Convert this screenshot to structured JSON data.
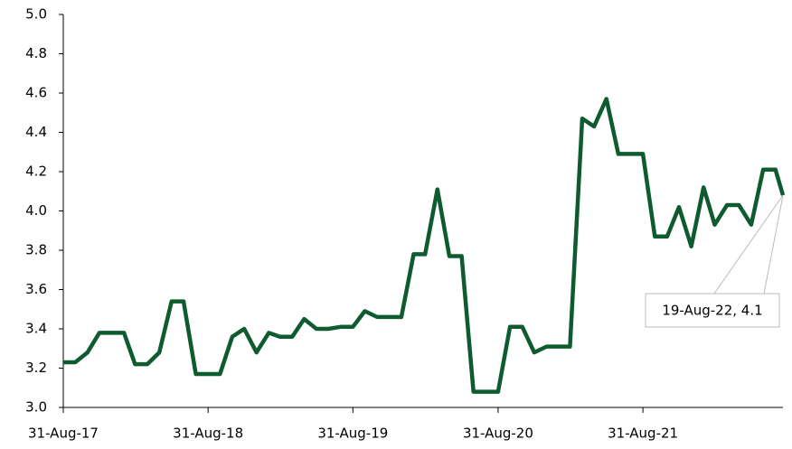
{
  "chart_data": {
    "type": "line",
    "x": [
      "2017-08-31",
      "2017-09-30",
      "2017-10-31",
      "2017-11-30",
      "2017-12-31",
      "2018-01-31",
      "2018-02-28",
      "2018-03-31",
      "2018-04-30",
      "2018-05-31",
      "2018-06-30",
      "2018-07-31",
      "2018-08-31",
      "2018-09-30",
      "2018-10-31",
      "2018-11-30",
      "2018-12-31",
      "2019-01-31",
      "2019-02-28",
      "2019-03-31",
      "2019-04-30",
      "2019-05-31",
      "2019-06-30",
      "2019-07-31",
      "2019-08-31",
      "2019-09-30",
      "2019-10-31",
      "2019-11-30",
      "2019-12-31",
      "2020-01-31",
      "2020-02-29",
      "2020-03-31",
      "2020-04-30",
      "2020-05-31",
      "2020-06-30",
      "2020-07-31",
      "2020-08-31",
      "2020-09-30",
      "2020-10-31",
      "2020-11-30",
      "2020-12-31",
      "2021-01-31",
      "2021-02-28",
      "2021-03-31",
      "2021-04-30",
      "2021-05-31",
      "2021-06-30",
      "2021-07-31",
      "2021-08-31",
      "2021-09-30",
      "2021-10-31",
      "2021-11-30",
      "2021-12-31",
      "2022-01-31",
      "2022-02-28",
      "2022-03-31",
      "2022-04-30",
      "2022-05-31",
      "2022-06-30",
      "2022-07-31",
      "2022-08-19"
    ],
    "series": [
      {
        "color": "#0d5b2e",
        "values": [
          3.23,
          3.23,
          3.28,
          3.38,
          3.38,
          3.38,
          3.22,
          3.22,
          3.28,
          3.54,
          3.54,
          3.17,
          3.17,
          3.17,
          3.36,
          3.4,
          3.28,
          3.38,
          3.36,
          3.36,
          3.45,
          3.4,
          3.4,
          3.41,
          3.41,
          3.49,
          3.46,
          3.46,
          3.46,
          3.78,
          3.78,
          4.11,
          3.77,
          3.77,
          3.08,
          3.08,
          3.08,
          3.41,
          3.41,
          3.28,
          3.31,
          3.31,
          3.31,
          4.47,
          4.43,
          4.57,
          4.29,
          4.29,
          4.29,
          3.87,
          3.87,
          4.02,
          3.82,
          4.12,
          3.93,
          4.03,
          4.03,
          3.93,
          4.21,
          4.21,
          4.08
        ]
      }
    ],
    "xlim": [
      "2017-08-31",
      "2022-08-19"
    ],
    "xticks": [
      {
        "value": "2017-08-31",
        "label": "31-Aug-17"
      },
      {
        "value": "2018-08-31",
        "label": "31-Aug-18"
      },
      {
        "value": "2019-08-31",
        "label": "31-Aug-19"
      },
      {
        "value": "2020-08-31",
        "label": "31-Aug-20"
      },
      {
        "value": "2021-08-31",
        "label": "31-Aug-21"
      }
    ],
    "ylim": [
      3.0,
      5.0
    ],
    "yticks": [
      {
        "value": 3.0,
        "label": "3.0"
      },
      3.2,
      3.4,
      3.6,
      3.8,
      {
        "value": 4.0,
        "label": "4.0"
      },
      4.2,
      4.4,
      4.6,
      4.8,
      {
        "value": 5.0,
        "label": "5.0"
      }
    ],
    "annotation": "19-Aug-22, 4.1",
    "grid": false
  }
}
